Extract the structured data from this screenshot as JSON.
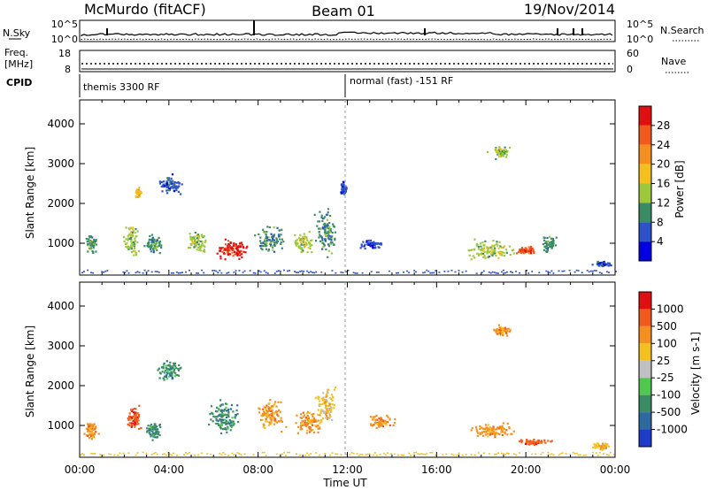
{
  "header": {
    "radar": "McMurdo (fitACF)",
    "beam": "Beam 01",
    "date": "19/Nov/2014"
  },
  "top_panels": {
    "nsky_label": "N.Sky",
    "nsky_ticks": [
      "10^5",
      "10^0"
    ],
    "nsearch_label": "N.Search",
    "nsearch_ticks": [
      "10^5",
      "10^0"
    ],
    "freq_label_1": "Freq.",
    "freq_label_2": "[MHz]",
    "freq_ticks": [
      "18",
      "8"
    ],
    "nave_label": "Nave",
    "nave_ticks": [
      "60",
      "0"
    ],
    "cpid_label": "CPID",
    "cpid_segments": [
      "themis 3300 RF",
      "normal (fast) -151 RF"
    ]
  },
  "chart_data": [
    {
      "type": "heatmap",
      "name": "power",
      "ylabel": "Slant Range [km]",
      "yticks": [
        "1000",
        "2000",
        "3000",
        "4000"
      ],
      "ylim": [
        200,
        4600
      ],
      "xlim": [
        0,
        24
      ],
      "colorbar": {
        "label": "Power [dB]",
        "ticks": [
          "4",
          "8",
          "12",
          "16",
          "20",
          "24",
          "28"
        ],
        "colors": [
          "#0000e0",
          "#2e52c8",
          "#3b8c64",
          "#9ec83c",
          "#f4c020",
          "#f49020",
          "#f05a1e",
          "#e01010"
        ]
      },
      "scatter_blobs": [
        {
          "t": 0.5,
          "r": 1000,
          "dt": 0.3,
          "dr": 300,
          "level": 2
        },
        {
          "t": 2.3,
          "r": 1100,
          "dt": 0.4,
          "dr": 500,
          "level": 3
        },
        {
          "t": 2.6,
          "r": 2300,
          "dt": 0.2,
          "dr": 150,
          "level": 4
        },
        {
          "t": 3.3,
          "r": 1000,
          "dt": 0.5,
          "dr": 300,
          "level": 2
        },
        {
          "t": 4.0,
          "r": 2500,
          "dt": 0.7,
          "dr": 300,
          "level": 1
        },
        {
          "t": 6.7,
          "r": 850,
          "dt": 1.0,
          "dr": 350,
          "level": 7
        },
        {
          "t": 5.2,
          "r": 1050,
          "dt": 0.6,
          "dr": 350,
          "level": 3
        },
        {
          "t": 8.5,
          "r": 1100,
          "dt": 0.8,
          "dr": 400,
          "level": 2
        },
        {
          "t": 10.0,
          "r": 1050,
          "dt": 0.6,
          "dr": 300,
          "level": 3
        },
        {
          "t": 11.0,
          "r": 1300,
          "dt": 0.6,
          "dr": 700,
          "level": 2
        },
        {
          "t": 11.8,
          "r": 2400,
          "dt": 0.2,
          "dr": 250,
          "level": 1
        },
        {
          "t": 13.0,
          "r": 1000,
          "dt": 0.6,
          "dr": 150,
          "level": 1
        },
        {
          "t": 18.4,
          "r": 850,
          "dt": 1.4,
          "dr": 300,
          "level": 3
        },
        {
          "t": 20.0,
          "r": 850,
          "dt": 0.6,
          "dr": 150,
          "level": 6
        },
        {
          "t": 18.8,
          "r": 3300,
          "dt": 0.6,
          "dr": 200,
          "level": 3
        },
        {
          "t": 21.0,
          "r": 1000,
          "dt": 0.4,
          "dr": 250,
          "level": 2
        },
        {
          "t": 23.4,
          "r": 500,
          "dt": 0.5,
          "dr": 100,
          "level": 1
        }
      ]
    },
    {
      "type": "heatmap",
      "name": "velocity",
      "ylabel": "Slant Range [km]",
      "yticks": [
        "1000",
        "2000",
        "3000",
        "4000"
      ],
      "ylim": [
        200,
        4600
      ],
      "xlim": [
        0,
        24
      ],
      "xlabel": "Time UT",
      "xticks": [
        "00:00",
        "04:00",
        "08:00",
        "12:00",
        "16:00",
        "20:00",
        "00:00"
      ],
      "colorbar": {
        "label": "Velocity [m s-1]",
        "ticks": [
          "1000",
          "500",
          "100",
          "25",
          "-25",
          "-100",
          "-500",
          "-1000"
        ],
        "colors": [
          "#1e3cc8",
          "#2e6aa0",
          "#3b8c64",
          "#50c850",
          "#c0c0c0",
          "#f4c020",
          "#f49020",
          "#f05a1e",
          "#e01010"
        ]
      },
      "scatter_blobs": [
        {
          "t": 0.5,
          "r": 900,
          "dt": 0.4,
          "dr": 300,
          "level": 6
        },
        {
          "t": 2.4,
          "r": 1200,
          "dt": 0.4,
          "dr": 400,
          "level": 7
        },
        {
          "t": 3.3,
          "r": 900,
          "dt": 0.5,
          "dr": 300,
          "level": 2
        },
        {
          "t": 4.0,
          "r": 2400,
          "dt": 0.7,
          "dr": 300,
          "level": 2
        },
        {
          "t": 6.5,
          "r": 1200,
          "dt": 1.0,
          "dr": 500,
          "level": 2
        },
        {
          "t": 8.5,
          "r": 1300,
          "dt": 0.8,
          "dr": 500,
          "level": 6
        },
        {
          "t": 10.2,
          "r": 1100,
          "dt": 0.7,
          "dr": 400,
          "level": 6
        },
        {
          "t": 11.0,
          "r": 1500,
          "dt": 0.6,
          "dr": 600,
          "level": 5
        },
        {
          "t": 13.5,
          "r": 1100,
          "dt": 0.8,
          "dr": 200,
          "level": 6
        },
        {
          "t": 18.5,
          "r": 900,
          "dt": 1.3,
          "dr": 250,
          "level": 6
        },
        {
          "t": 20.3,
          "r": 600,
          "dt": 1.0,
          "dr": 100,
          "level": 7
        },
        {
          "t": 18.9,
          "r": 3400,
          "dt": 0.5,
          "dr": 150,
          "level": 6
        },
        {
          "t": 23.4,
          "r": 500,
          "dt": 0.5,
          "dr": 100,
          "level": 5
        }
      ]
    }
  ]
}
